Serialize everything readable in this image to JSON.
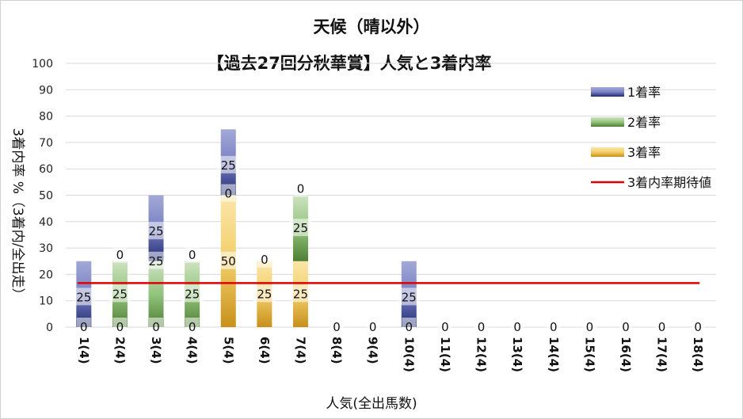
{
  "chart_data": {
    "type": "bar",
    "stacked": true,
    "title": "天候（晴以外）",
    "subtitle": "【過去27回分秋華賞】人気と3着内率",
    "xlabel": "人気(全出馬数)",
    "ylabel": "3着内率 %（3着内/全出走）",
    "ylim": [
      0,
      100
    ],
    "yticks": [
      0,
      10,
      20,
      30,
      40,
      50,
      60,
      70,
      80,
      90,
      100
    ],
    "grid": true,
    "legend_position": "right",
    "categories": [
      "1(4)",
      "2(4)",
      "3(4)",
      "4(4)",
      "5(4)",
      "6(4)",
      "7(4)",
      "8(4)",
      "9(4)",
      "10(4)",
      "11(4)",
      "12(4)",
      "13(4)",
      "14(4)",
      "15(4)",
      "16(4)",
      "17(4)",
      "18(4)"
    ],
    "series": [
      {
        "name": "3着率",
        "values": [
          0,
          0,
          0,
          0,
          50,
          25,
          25,
          0,
          0,
          0,
          0,
          0,
          0,
          0,
          0,
          0,
          0,
          0
        ],
        "color": "#e8b32a"
      },
      {
        "name": "2着率",
        "values": [
          0,
          25,
          25,
          25,
          0,
          0,
          25,
          0,
          0,
          0,
          0,
          0,
          0,
          0,
          0,
          0,
          0,
          0
        ],
        "color": "#6aa84f"
      },
      {
        "name": "1着率",
        "values": [
          25,
          0,
          25,
          0,
          25,
          0,
          0,
          0,
          0,
          25,
          0,
          0,
          0,
          0,
          0,
          0,
          0,
          0
        ],
        "color": "#3b4a9a"
      }
    ],
    "data_labels": {
      "1着率": [
        "25",
        "",
        "25",
        "",
        "25",
        "",
        "",
        "",
        "",
        "25",
        "",
        "",
        "",
        "",
        "",
        "",
        "",
        ""
      ],
      "2着率": [
        "",
        "0",
        "25",
        "0",
        "",
        "",
        "0",
        "",
        "",
        "",
        "",
        "",
        "",
        "",
        "",
        "",
        "",
        ""
      ],
      "2着率_mid": [
        "",
        "25",
        "",
        "25",
        "",
        "",
        "25",
        "",
        "",
        "",
        "",
        "",
        "",
        "",
        "",
        "",
        "",
        ""
      ],
      "3着率": [
        "",
        "",
        "",
        "",
        "0",
        "0",
        "",
        "",
        "",
        "",
        "",
        "",
        "",
        "",
        "",
        "",
        "",
        ""
      ],
      "3着率_mid": [
        "",
        "",
        "",
        "",
        "50",
        "25",
        "25",
        "",
        "",
        "",
        "",
        "",
        "",
        "",
        "",
        "",
        "",
        ""
      ],
      "bottom": [
        "0",
        "0",
        "0",
        "0",
        "",
        "",
        "",
        "0",
        "0",
        "0",
        "0",
        "0",
        "0",
        "0",
        "0",
        "0",
        "0",
        "0"
      ]
    },
    "reference_line": {
      "name": "3着内率期待値",
      "value": 16.7,
      "color": "#e00000"
    },
    "legend": [
      "1着率",
      "2着率",
      "3着率",
      "3着内率期待値"
    ]
  }
}
